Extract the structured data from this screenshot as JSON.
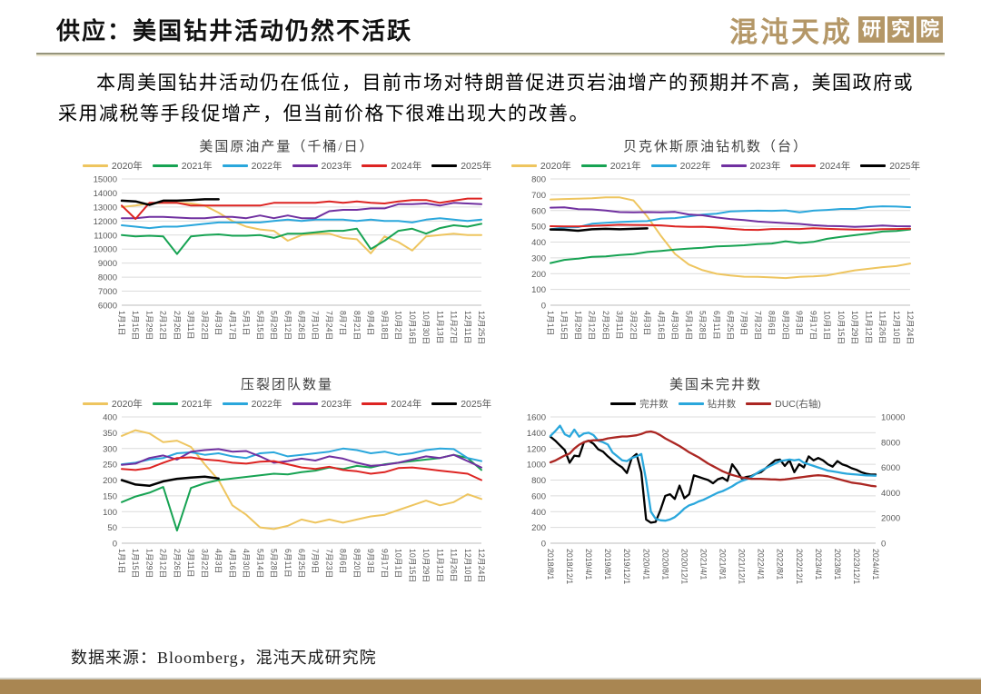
{
  "header": {
    "title": "供应：美国钻井活动仍然不活跃",
    "logo_text": "混沌天成",
    "logo_suffix": [
      "研",
      "究",
      "院"
    ]
  },
  "intro": {
    "text": "本周美国钻井活动仍在低位，目前市场对特朗普促进页岩油增产的预期并不高，美国政府或采用减税等手段促增产，但当前价格下很难出现大的改善。"
  },
  "footer": {
    "source": "数据来源：Bloomberg，混沌天成研究院"
  },
  "colors": {
    "accent_gold": "#a98652",
    "logo_tan": "#b49767",
    "grid": "#dcdcdc",
    "axis_text": "#595959"
  },
  "chart_data": [
    {
      "type": "line",
      "title": "美国原油产量（千桶/日）",
      "ylim": [
        6000,
        15000
      ],
      "ytick": 1000,
      "grid": true,
      "legend_position": "top",
      "categories": [
        "1月1日",
        "1月15日",
        "1月29日",
        "2月12日",
        "2月26日",
        "3月11日",
        "3月22日",
        "4月3日",
        "4月17日",
        "5月1日",
        "5月15日",
        "5月29日",
        "6月12日",
        "6月26日",
        "7月10日",
        "7月24日",
        "8月7日",
        "8月21日",
        "9月4日",
        "9月18日",
        "10月2日",
        "10月16日",
        "10月30日",
        "11月13日",
        "11月27日",
        "12月11日",
        "12月25日"
      ],
      "series": [
        {
          "name": "2020年",
          "color": "#eec55f",
          "values": [
            13000,
            13100,
            13250,
            13300,
            13300,
            13250,
            13100,
            12600,
            12000,
            11600,
            11400,
            11300,
            10600,
            11000,
            11100,
            11100,
            10800,
            10700,
            9700,
            10900,
            10500,
            9900,
            10900,
            11000,
            11100,
            11000,
            11000
          ]
        },
        {
          "name": "2021年",
          "color": "#17a353",
          "values": [
            11000,
            10900,
            10950,
            10900,
            9650,
            10900,
            11000,
            11050,
            10950,
            10950,
            11000,
            10800,
            11100,
            11100,
            11200,
            11300,
            11300,
            11450,
            10000,
            10600,
            11300,
            11450,
            11100,
            11500,
            11700,
            11600,
            11800
          ]
        },
        {
          "name": "2022年",
          "color": "#2aa7dc",
          "values": [
            11700,
            11600,
            11500,
            11600,
            11600,
            11700,
            11800,
            11900,
            11900,
            11900,
            11900,
            12000,
            12100,
            12000,
            12100,
            12100,
            12100,
            12000,
            12100,
            12000,
            12000,
            11900,
            12100,
            12200,
            12100,
            12000,
            12100
          ]
        },
        {
          "name": "2023年",
          "color": "#7030a0",
          "values": [
            12200,
            12200,
            12300,
            12300,
            12250,
            12200,
            12200,
            12300,
            12300,
            12200,
            12400,
            12200,
            12400,
            12200,
            12200,
            12700,
            12800,
            12800,
            12900,
            12900,
            13200,
            13200,
            13250,
            13100,
            13300,
            13250,
            13200
          ]
        },
        {
          "name": "2024年",
          "color": "#dd2422",
          "values": [
            13100,
            12150,
            13300,
            13300,
            13300,
            13100,
            13100,
            13100,
            13100,
            13100,
            13100,
            13300,
            13300,
            13300,
            13300,
            13400,
            13300,
            13400,
            13300,
            13250,
            13400,
            13500,
            13500,
            13300,
            13450,
            13600,
            13600
          ]
        },
        {
          "name": "2025年",
          "color": "#000000",
          "values": [
            13450,
            13400,
            13150,
            13450,
            13450,
            13500,
            13550,
            13550
          ]
        }
      ]
    },
    {
      "type": "line",
      "title": "贝克休斯原油钻机数（台）",
      "ylim": [
        0,
        800
      ],
      "ytick": 100,
      "grid": true,
      "legend_position": "top",
      "categories": [
        "1月1日",
        "1月15日",
        "1月29日",
        "2月12日",
        "2月26日",
        "3月11日",
        "3月22日",
        "4月3日",
        "4月16日",
        "4月30日",
        "5月14日",
        "5月28日",
        "6月11日",
        "6月25日",
        "7月9日",
        "7月23日",
        "8月6日",
        "8月20日",
        "9月3日",
        "9月17日",
        "10月1日",
        "10月15日",
        "10月29日",
        "11月12日",
        "11月26日",
        "12月10日",
        "12月24日"
      ],
      "series": [
        {
          "name": "2020年",
          "color": "#eec55f",
          "values": [
            670,
            673,
            675,
            678,
            683,
            683,
            664,
            562,
            438,
            325,
            258,
            222,
            199,
            188,
            181,
            180,
            176,
            172,
            180,
            183,
            189,
            205,
            221,
            231,
            241,
            248,
            264
          ]
        },
        {
          "name": "2021年",
          "color": "#17a353",
          "values": [
            267,
            287,
            295,
            306,
            309,
            318,
            324,
            337,
            344,
            352,
            359,
            364,
            373,
            376,
            380,
            387,
            391,
            405,
            394,
            401,
            421,
            433,
            444,
            454,
            467,
            471,
            480
          ]
        },
        {
          "name": "2022年",
          "color": "#2aa7dc",
          "values": [
            481,
            492,
            495,
            516,
            522,
            527,
            531,
            533,
            549,
            552,
            563,
            574,
            580,
            594,
            597,
            599,
            598,
            601,
            588,
            599,
            604,
            610,
            610,
            622,
            627,
            625,
            621
          ]
        },
        {
          "name": "2023年",
          "color": "#7030a0",
          "values": [
            618,
            620,
            609,
            607,
            600,
            590,
            589,
            590,
            588,
            591,
            575,
            570,
            556,
            546,
            540,
            530,
            525,
            520,
            515,
            507,
            502,
            501,
            496,
            500,
            505,
            501,
            500
          ]
        },
        {
          "name": "2024年",
          "color": "#dd2422",
          "values": [
            501,
            499,
            499,
            503,
            506,
            510,
            509,
            508,
            506,
            499,
            496,
            497,
            492,
            485,
            478,
            477,
            483,
            483,
            483,
            488,
            484,
            481,
            479,
            479,
            482,
            483,
            485
          ]
        },
        {
          "name": "2025年",
          "color": "#000000",
          "values": [
            480,
            478,
            472,
            481,
            484,
            481,
            484,
            487
          ]
        }
      ]
    },
    {
      "type": "line",
      "title": "压裂团队数量",
      "ylim": [
        0,
        400
      ],
      "ytick": 50,
      "grid": true,
      "legend_position": "top",
      "categories": [
        "1月1日",
        "1月15日",
        "1月29日",
        "2月12日",
        "2月26日",
        "3月11日",
        "3月22日",
        "4月3日",
        "4月16日",
        "4月30日",
        "5月14日",
        "5月28日",
        "6月11日",
        "6月25日",
        "7月9日",
        "7月23日",
        "8月6日",
        "8月20日",
        "9月3日",
        "9月17日",
        "10月1日",
        "10月15日",
        "10月29日",
        "11月12日",
        "11月26日",
        "12月10日",
        "12月24日"
      ],
      "series": [
        {
          "name": "2020年",
          "color": "#eec55f",
          "values": [
            340,
            358,
            348,
            320,
            325,
            305,
            250,
            200,
            120,
            90,
            50,
            45,
            55,
            75,
            65,
            75,
            65,
            75,
            85,
            90,
            105,
            120,
            135,
            120,
            130,
            155,
            140
          ]
        },
        {
          "name": "2021年",
          "color": "#17a353",
          "values": [
            130,
            148,
            160,
            178,
            40,
            175,
            190,
            200,
            205,
            210,
            215,
            220,
            218,
            225,
            230,
            240,
            235,
            245,
            240,
            250,
            255,
            260,
            265,
            270,
            280,
            270,
            232
          ]
        },
        {
          "name": "2022年",
          "color": "#2aa7dc",
          "values": [
            250,
            255,
            265,
            270,
            285,
            288,
            280,
            285,
            275,
            270,
            285,
            288,
            275,
            280,
            285,
            290,
            300,
            295,
            285,
            290,
            280,
            285,
            295,
            300,
            298,
            270,
            260
          ]
        },
        {
          "name": "2023年",
          "color": "#7030a0",
          "values": [
            248,
            252,
            270,
            278,
            265,
            290,
            295,
            298,
            290,
            292,
            275,
            255,
            260,
            268,
            262,
            275,
            268,
            255,
            245,
            248,
            255,
            265,
            275,
            270,
            280,
            260,
            240
          ]
        },
        {
          "name": "2024年",
          "color": "#dd2422",
          "values": [
            235,
            232,
            238,
            255,
            270,
            272,
            265,
            262,
            255,
            252,
            258,
            260,
            250,
            240,
            235,
            242,
            232,
            228,
            220,
            225,
            238,
            240,
            235,
            230,
            225,
            220,
            200
          ]
        },
        {
          "name": "2025年",
          "color": "#000000",
          "values": [
            200,
            186,
            182,
            196,
            204,
            208,
            211,
            205
          ]
        }
      ]
    },
    {
      "type": "line",
      "title": "美国未完井数",
      "ylim": [
        0,
        1600
      ],
      "ytick": 200,
      "ylim_right": [
        0,
        10000
      ],
      "ytick_right": 2000,
      "x_tick_step": 4,
      "grid": true,
      "legend_position": "top",
      "categories": [
        "2018/8/1",
        "2018/12/1",
        "2019/4/1",
        "2019/8/1",
        "2019/12/1",
        "2020/4/1",
        "2020/8/1",
        "2020/12/1",
        "2021/4/1",
        "2021/8/1",
        "2021/12/1",
        "2022/4/1",
        "2022/8/1",
        "2022/12/1",
        "2023/4/1",
        "2023/8/1",
        "2023/12/1",
        "2024/4/1"
      ],
      "series": [
        {
          "name": "完井数",
          "color": "#000000",
          "values": [
            1350,
            1300,
            1240,
            1180,
            1020,
            1110,
            1100,
            1280,
            1300,
            1260,
            1190,
            1160,
            1100,
            1050,
            1000,
            960,
            890,
            1080,
            1130,
            900,
            300,
            260,
            270,
            420,
            600,
            620,
            560,
            730,
            570,
            620,
            860,
            840,
            820,
            800,
            760,
            810,
            830,
            790,
            1000,
            920,
            820,
            840,
            850,
            880,
            900,
            950,
            1000,
            1050,
            1060,
            980,
            1050,
            900,
            1000,
            960,
            1100,
            1050,
            1080,
            1050,
            1000,
            970,
            1040,
            1000,
            980,
            950,
            930,
            900,
            880,
            870,
            870
          ]
        },
        {
          "name": "钻井数",
          "color": "#2aa7dc",
          "values": [
            1360,
            1420,
            1490,
            1380,
            1350,
            1440,
            1350,
            1390,
            1400,
            1370,
            1300,
            1280,
            1250,
            1150,
            1100,
            1050,
            1040,
            1080,
            1100,
            1130,
            800,
            400,
            310,
            290,
            285,
            300,
            330,
            380,
            440,
            480,
            500,
            530,
            550,
            580,
            610,
            640,
            660,
            690,
            720,
            760,
            790,
            810,
            840,
            880,
            920,
            950,
            980,
            1010,
            1040,
            1050,
            1060,
            1050,
            1060,
            1020,
            1000,
            980,
            960,
            940,
            920,
            910,
            900,
            890,
            880,
            875,
            870,
            865,
            860,
            858,
            855
          ]
        },
        {
          "name": "DUC(右轴)",
          "color": "#ab2622",
          "axis": "right",
          "values": [
            6400,
            6550,
            6750,
            6950,
            7100,
            7500,
            7800,
            8000,
            8100,
            8150,
            8150,
            8200,
            8300,
            8350,
            8400,
            8450,
            8450,
            8500,
            8550,
            8650,
            8800,
            8850,
            8750,
            8550,
            8300,
            8100,
            7900,
            7700,
            7450,
            7200,
            7000,
            6800,
            6550,
            6300,
            6100,
            5900,
            5700,
            5550,
            5400,
            5300,
            5200,
            5150,
            5100,
            5100,
            5100,
            5080,
            5060,
            5050,
            5020,
            5050,
            5100,
            5150,
            5200,
            5250,
            5300,
            5350,
            5380,
            5350,
            5300,
            5200,
            5100,
            5000,
            4900,
            4800,
            4750,
            4700,
            4620,
            4550,
            4500
          ]
        }
      ]
    }
  ]
}
